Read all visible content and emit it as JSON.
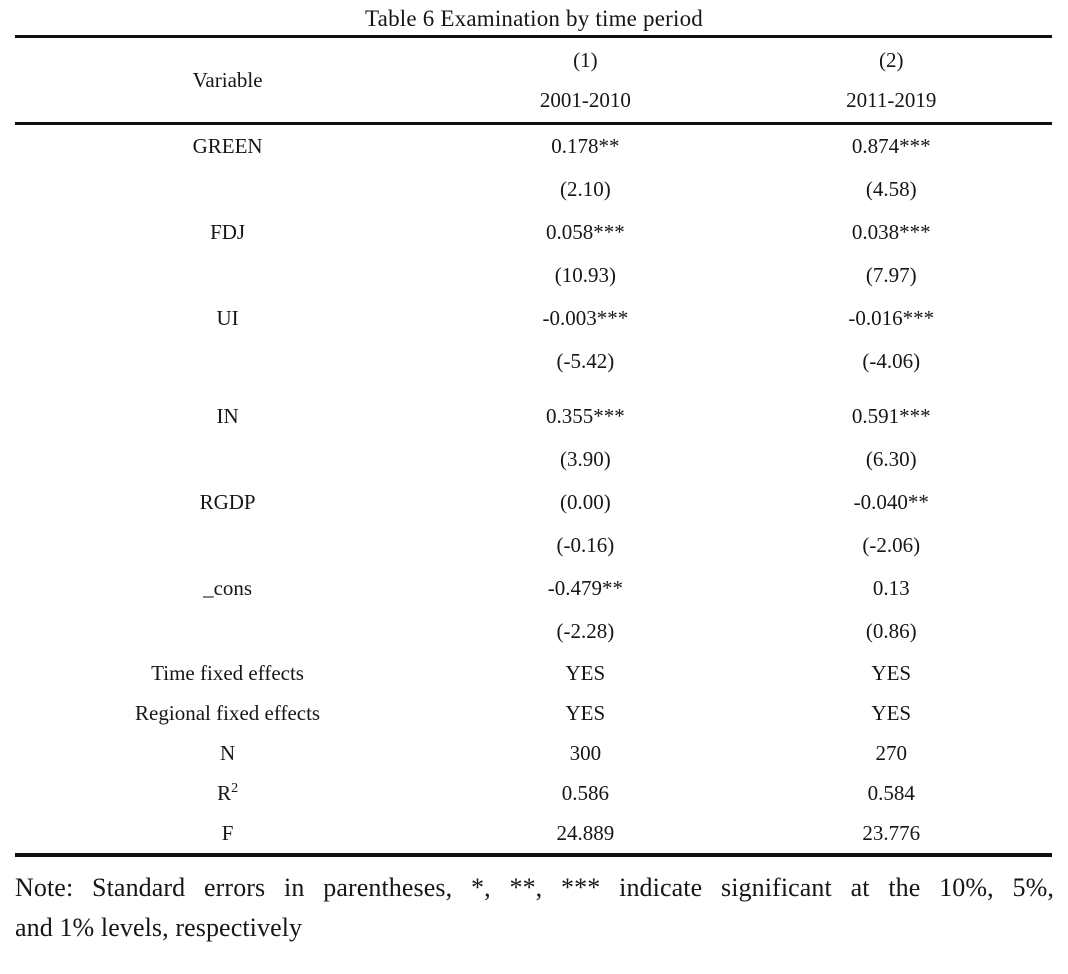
{
  "title": "Table 6 Examination by time period",
  "table": {
    "header": {
      "variable_label": "Variable",
      "columns": [
        {
          "number": "(1)",
          "period": "2001-2010"
        },
        {
          "number": "(2)",
          "period": "2011-2019"
        }
      ]
    },
    "rows": [
      {
        "variable": "GREEN",
        "c1": "0.178**",
        "c2": "0.874***",
        "group": "coef"
      },
      {
        "variable": "",
        "c1": "(2.10)",
        "c2": "(4.58)",
        "group": "stat"
      },
      {
        "variable": "FDJ",
        "c1": "0.058***",
        "c2": "0.038***",
        "group": "coef"
      },
      {
        "variable": "",
        "c1": "(10.93)",
        "c2": "(7.97)",
        "group": "stat"
      },
      {
        "variable": "UI",
        "c1": "-0.003***",
        "c2": "-0.016***",
        "group": "coef"
      },
      {
        "variable": "",
        "c1": "(-5.42)",
        "c2": "(-4.06)",
        "group": "stat"
      },
      {
        "variable": "IN",
        "c1": "0.355***",
        "c2": "0.591***",
        "group": "coef",
        "gap_before": true
      },
      {
        "variable": "",
        "c1": "(3.90)",
        "c2": "(6.30)",
        "group": "stat"
      },
      {
        "variable": "RGDP",
        "c1": "(0.00)",
        "c2": "-0.040**",
        "group": "coef"
      },
      {
        "variable": "",
        "c1": "(-0.16)",
        "c2": "(-2.06)",
        "group": "stat"
      },
      {
        "variable": "_cons",
        "c1": "-0.479**",
        "c2": "0.13",
        "group": "coef"
      },
      {
        "variable": "",
        "c1": "(-2.28)",
        "c2": "(0.86)",
        "group": "stat"
      },
      {
        "variable": "Time fixed effects",
        "c1": "YES",
        "c2": "YES",
        "group": "summary"
      },
      {
        "variable": "Regional fixed effects",
        "c1": "YES",
        "c2": "YES",
        "group": "summary"
      },
      {
        "variable": "N",
        "c1": "300",
        "c2": "270",
        "group": "summary"
      },
      {
        "variable": "R",
        "variable_sup": "2",
        "c1": "0.586",
        "c2": "0.584",
        "group": "summary"
      },
      {
        "variable": "F",
        "c1": "24.889",
        "c2": "23.776",
        "group": "summary"
      }
    ]
  },
  "note": {
    "line1": "Note: Standard errors in parentheses, *, **, *** indicate significant at the 10%, 5%,",
    "line2": "and 1% levels, respectively"
  }
}
